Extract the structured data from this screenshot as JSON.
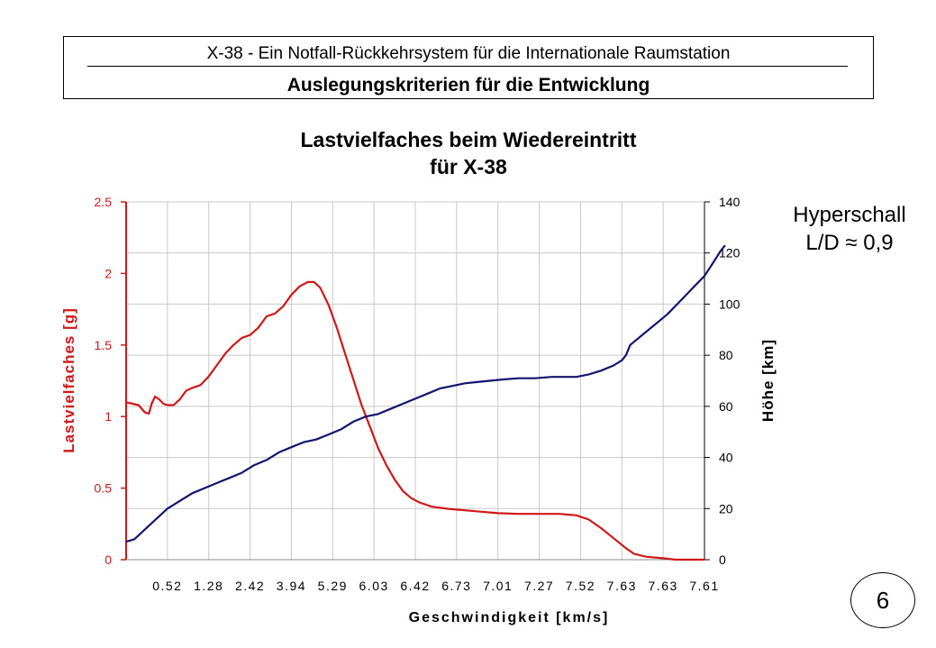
{
  "header": {
    "line1": "X-38 - Ein Notfall-Rückkehrsystem für die Internationale Raumstation",
    "line2": "Auslegungskriterien für die Entwicklung"
  },
  "side_note": {
    "line1": "Hyperschall",
    "line2": "L/D ≈ 0,9"
  },
  "page_number": "6",
  "colors": {
    "load": "#d01818",
    "altitude": "#14146e",
    "grid": "#c8c8c8"
  },
  "chart_data": {
    "type": "line",
    "title": [
      "Lastvielfaches beim Wiedereintritt",
      "für X-38"
    ],
    "xlabel": "Geschwindigkeit [km/s]",
    "x_tick_labels": [
      "0.52",
      "1.28",
      "2.42",
      "3.94",
      "5.29",
      "6.03",
      "6.42",
      "6.73",
      "7.01",
      "7.27",
      "7.52",
      "7.63",
      "7.63",
      "7.61"
    ],
    "y_left": {
      "label": "Lastvielfaches [g]",
      "ticks": [
        "0",
        "0.5",
        "1",
        "1.5",
        "2",
        "2.5"
      ],
      "range": [
        0,
        2.5
      ]
    },
    "y_right": {
      "label": "Höhe [km]",
      "ticks": [
        "0",
        "20",
        "40",
        "60",
        "80",
        "100",
        "120",
        "140"
      ],
      "range": [
        0,
        140
      ]
    },
    "x_range": [
      0,
      14
    ],
    "grid": true,
    "series": [
      {
        "name": "Lastvielfaches [g]",
        "axis": "left",
        "points": [
          [
            0,
            1.1
          ],
          [
            0.3,
            1.08
          ],
          [
            0.45,
            1.03
          ],
          [
            0.55,
            1.02
          ],
          [
            0.62,
            1.09
          ],
          [
            0.7,
            1.14
          ],
          [
            0.8,
            1.12
          ],
          [
            0.9,
            1.09
          ],
          [
            1.0,
            1.08
          ],
          [
            1.15,
            1.08
          ],
          [
            1.3,
            1.12
          ],
          [
            1.45,
            1.18
          ],
          [
            1.6,
            1.2
          ],
          [
            1.8,
            1.22
          ],
          [
            2.0,
            1.28
          ],
          [
            2.2,
            1.36
          ],
          [
            2.4,
            1.44
          ],
          [
            2.6,
            1.5
          ],
          [
            2.8,
            1.55
          ],
          [
            3.0,
            1.57
          ],
          [
            3.2,
            1.62
          ],
          [
            3.4,
            1.7
          ],
          [
            3.6,
            1.72
          ],
          [
            3.8,
            1.77
          ],
          [
            4.0,
            1.85
          ],
          [
            4.2,
            1.91
          ],
          [
            4.4,
            1.94
          ],
          [
            4.55,
            1.94
          ],
          [
            4.7,
            1.9
          ],
          [
            4.9,
            1.78
          ],
          [
            5.1,
            1.62
          ],
          [
            5.3,
            1.44
          ],
          [
            5.5,
            1.26
          ],
          [
            5.7,
            1.08
          ],
          [
            5.9,
            0.93
          ],
          [
            6.1,
            0.78
          ],
          [
            6.3,
            0.66
          ],
          [
            6.5,
            0.56
          ],
          [
            6.7,
            0.48
          ],
          [
            6.9,
            0.43
          ],
          [
            7.1,
            0.4
          ],
          [
            7.4,
            0.37
          ],
          [
            7.8,
            0.355
          ],
          [
            8.2,
            0.345
          ],
          [
            8.6,
            0.335
          ],
          [
            9.0,
            0.325
          ],
          [
            9.5,
            0.32
          ],
          [
            10.0,
            0.32
          ],
          [
            10.5,
            0.32
          ],
          [
            10.9,
            0.31
          ],
          [
            11.2,
            0.28
          ],
          [
            11.5,
            0.22
          ],
          [
            11.8,
            0.15
          ],
          [
            12.1,
            0.08
          ],
          [
            12.3,
            0.04
          ],
          [
            12.6,
            0.02
          ],
          [
            13.0,
            0.01
          ],
          [
            13.3,
            0.0
          ],
          [
            14.0,
            0.0
          ]
        ]
      },
      {
        "name": "Höhe [km]",
        "axis": "right",
        "points": [
          [
            0,
            7
          ],
          [
            0.2,
            8
          ],
          [
            0.4,
            11
          ],
          [
            0.6,
            14
          ],
          [
            0.8,
            17
          ],
          [
            1.0,
            20
          ],
          [
            1.3,
            23
          ],
          [
            1.6,
            26
          ],
          [
            1.9,
            28
          ],
          [
            2.2,
            30
          ],
          [
            2.5,
            32
          ],
          [
            2.8,
            34
          ],
          [
            3.1,
            37
          ],
          [
            3.4,
            39
          ],
          [
            3.7,
            42
          ],
          [
            4.0,
            44
          ],
          [
            4.3,
            46
          ],
          [
            4.6,
            47
          ],
          [
            4.9,
            49
          ],
          [
            5.2,
            51
          ],
          [
            5.5,
            54
          ],
          [
            5.8,
            56
          ],
          [
            6.1,
            57
          ],
          [
            6.4,
            59
          ],
          [
            6.7,
            61
          ],
          [
            7.0,
            63
          ],
          [
            7.3,
            65
          ],
          [
            7.6,
            67
          ],
          [
            7.9,
            68
          ],
          [
            8.2,
            69
          ],
          [
            8.5,
            69.5
          ],
          [
            8.8,
            70
          ],
          [
            9.1,
            70.5
          ],
          [
            9.5,
            71
          ],
          [
            9.9,
            71
          ],
          [
            10.3,
            71.5
          ],
          [
            10.6,
            71.5
          ],
          [
            10.9,
            71.5
          ],
          [
            11.2,
            72.5
          ],
          [
            11.5,
            74
          ],
          [
            11.8,
            76
          ],
          [
            12.0,
            78
          ],
          [
            12.1,
            80
          ],
          [
            12.2,
            84
          ],
          [
            12.5,
            88
          ],
          [
            12.8,
            92
          ],
          [
            13.1,
            96
          ],
          [
            13.4,
            101
          ],
          [
            13.7,
            106
          ],
          [
            14.0,
            111
          ],
          [
            14.2,
            116
          ],
          [
            14.4,
            121
          ],
          [
            14.5,
            123
          ]
        ]
      }
    ]
  }
}
